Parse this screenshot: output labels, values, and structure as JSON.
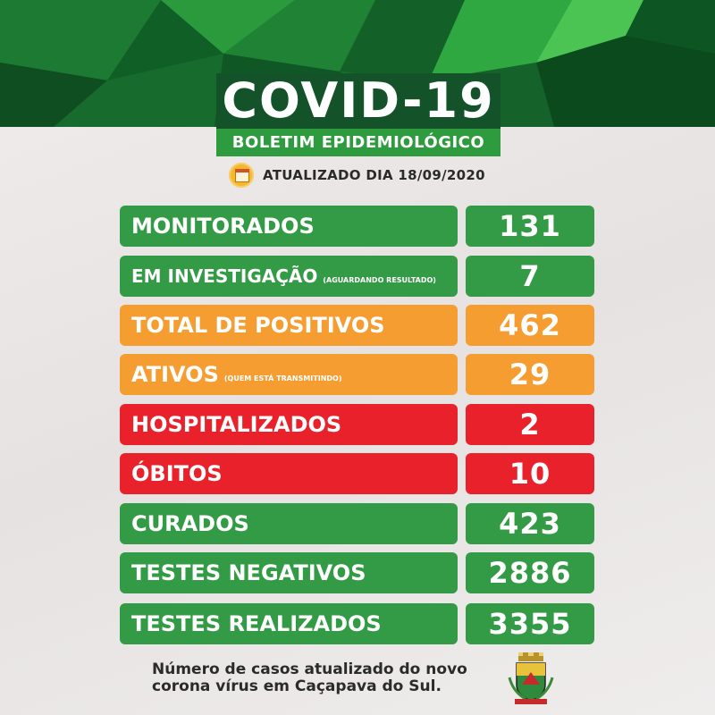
{
  "header": {
    "title": "COVID-19",
    "subtitle": "BOLETIM EPIDEMIOLÓGICO",
    "updated": "ATUALIZADO DIA 18/09/2020"
  },
  "stats": [
    {
      "label": "MONITORADOS",
      "note": "",
      "value": "131"
    },
    {
      "label": "EM INVESTIGAÇÃO",
      "note": "(AGUARDANDO RESULTADO)",
      "value": "7"
    },
    {
      "label": "TOTAL DE POSITIVOS",
      "note": "",
      "value": "462"
    },
    {
      "label": "ATIVOS",
      "note": "(QUEM ESTÁ TRANSMITINDO)",
      "value": "29"
    },
    {
      "label": "HOSPITALIZADOS",
      "note": "",
      "value": "2"
    },
    {
      "label": "ÓBITOS",
      "note": "",
      "value": "10"
    },
    {
      "label": "CURADOS",
      "note": "",
      "value": "423"
    },
    {
      "label": "TESTES NEGATIVOS",
      "note": "",
      "value": "2886"
    },
    {
      "label": "TESTES REALIZADOS",
      "note": "",
      "value": "3355"
    }
  ],
  "footer": {
    "line1": "Número de casos atualizado do novo",
    "line2": "corona vírus em Caçapava do Sul."
  },
  "colors": {
    "green": "#339a45",
    "orange": "#f59d31",
    "red": "#e8212b",
    "title_bg": "#14522a",
    "subtitle_bg": "#2e9c3e"
  },
  "icons": [
    "calendar-icon",
    "coat-of-arms-icon"
  ]
}
